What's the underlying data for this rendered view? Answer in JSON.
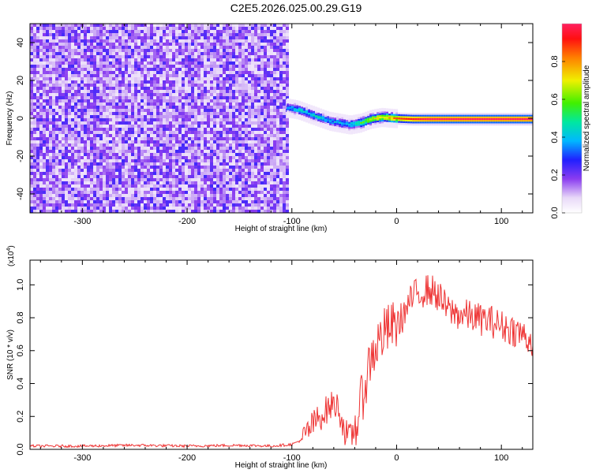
{
  "title": "C2E5.2026.025.00.29.G19",
  "chart_data": [
    {
      "type": "heatmap",
      "title": "C2E5.2026.025.00.29.G19",
      "xlabel": "Height of straight line (km)",
      "ylabel": "Frequency (Hz)",
      "xlim": [
        -350,
        130
      ],
      "ylim": [
        -50,
        50
      ],
      "x_ticks": [
        -300,
        -200,
        -100,
        0,
        100
      ],
      "x_tick_labels": [
        "-300",
        "-200",
        "-100",
        "0",
        "100"
      ],
      "y_ticks": [
        -40,
        -20,
        0,
        20,
        40
      ],
      "y_tick_labels": [
        "-40",
        "-20",
        "0",
        "20",
        "40"
      ],
      "colorbar": {
        "label": "Normalized spectral amplitude",
        "range": [
          0,
          1
        ],
        "ticks": [
          0.0,
          0.2,
          0.4,
          0.6,
          0.8
        ],
        "tick_labels": [
          "0.0",
          "0.2",
          "0.4",
          "0.6",
          "0.8"
        ]
      },
      "noise_region_x": [
        -350,
        -105
      ],
      "signal_track": {
        "x": [
          -105,
          -95,
          -85,
          -75,
          -65,
          -55,
          -45,
          -35,
          -25,
          -15,
          -5,
          5,
          15,
          30,
          60,
          100,
          130
        ],
        "frequency": [
          6,
          5,
          3,
          1,
          -1,
          -2,
          -3,
          -2,
          0,
          1,
          0.5,
          0.2,
          0,
          0,
          0,
          0,
          0
        ],
        "amplitude": [
          0.45,
          0.5,
          0.48,
          0.5,
          0.42,
          0.45,
          0.5,
          0.6,
          0.75,
          0.8,
          0.85,
          0.9,
          0.95,
          1.0,
          1.0,
          1.0,
          1.0
        ]
      }
    },
    {
      "type": "line",
      "title": "",
      "xlabel": "Height of straight line (km)",
      "ylabel": "SNR (10 * v/v)",
      "y_multiplier_label": "(x10",
      "y_multiplier_exp": "4",
      "y_multiplier_close": ")",
      "xlim": [
        -350,
        130
      ],
      "ylim": [
        0,
        1.15
      ],
      "x_ticks": [
        -300,
        -200,
        -100,
        0,
        100
      ],
      "x_tick_labels": [
        "-300",
        "-200",
        "-100",
        "0",
        "100"
      ],
      "y_ticks": [
        0.0,
        0.2,
        0.4,
        0.6,
        0.8,
        1.0
      ],
      "y_tick_labels": [
        "0.0",
        "0.2",
        "0.4",
        "0.6",
        "0.8",
        "1.0"
      ],
      "line_color": "#ee3333",
      "series": [
        {
          "name": "SNR",
          "x": [
            -350,
            -300,
            -250,
            -200,
            -150,
            -120,
            -100,
            -90,
            -80,
            -70,
            -60,
            -55,
            -50,
            -45,
            -40,
            -35,
            -30,
            -25,
            -20,
            -15,
            -10,
            -5,
            0,
            5,
            10,
            15,
            20,
            25,
            30,
            35,
            40,
            45,
            50,
            60,
            70,
            80,
            90,
            100,
            110,
            120,
            130
          ],
          "y": [
            0.02,
            0.02,
            0.025,
            0.02,
            0.025,
            0.02,
            0.03,
            0.06,
            0.15,
            0.22,
            0.28,
            0.25,
            0.12,
            0.06,
            0.12,
            0.25,
            0.4,
            0.55,
            0.62,
            0.68,
            0.72,
            0.74,
            0.76,
            0.8,
            0.86,
            0.92,
            0.95,
            0.96,
            0.97,
            0.96,
            0.93,
            0.88,
            0.84,
            0.82,
            0.81,
            0.79,
            0.78,
            0.75,
            0.73,
            0.7,
            0.65
          ]
        }
      ]
    }
  ]
}
